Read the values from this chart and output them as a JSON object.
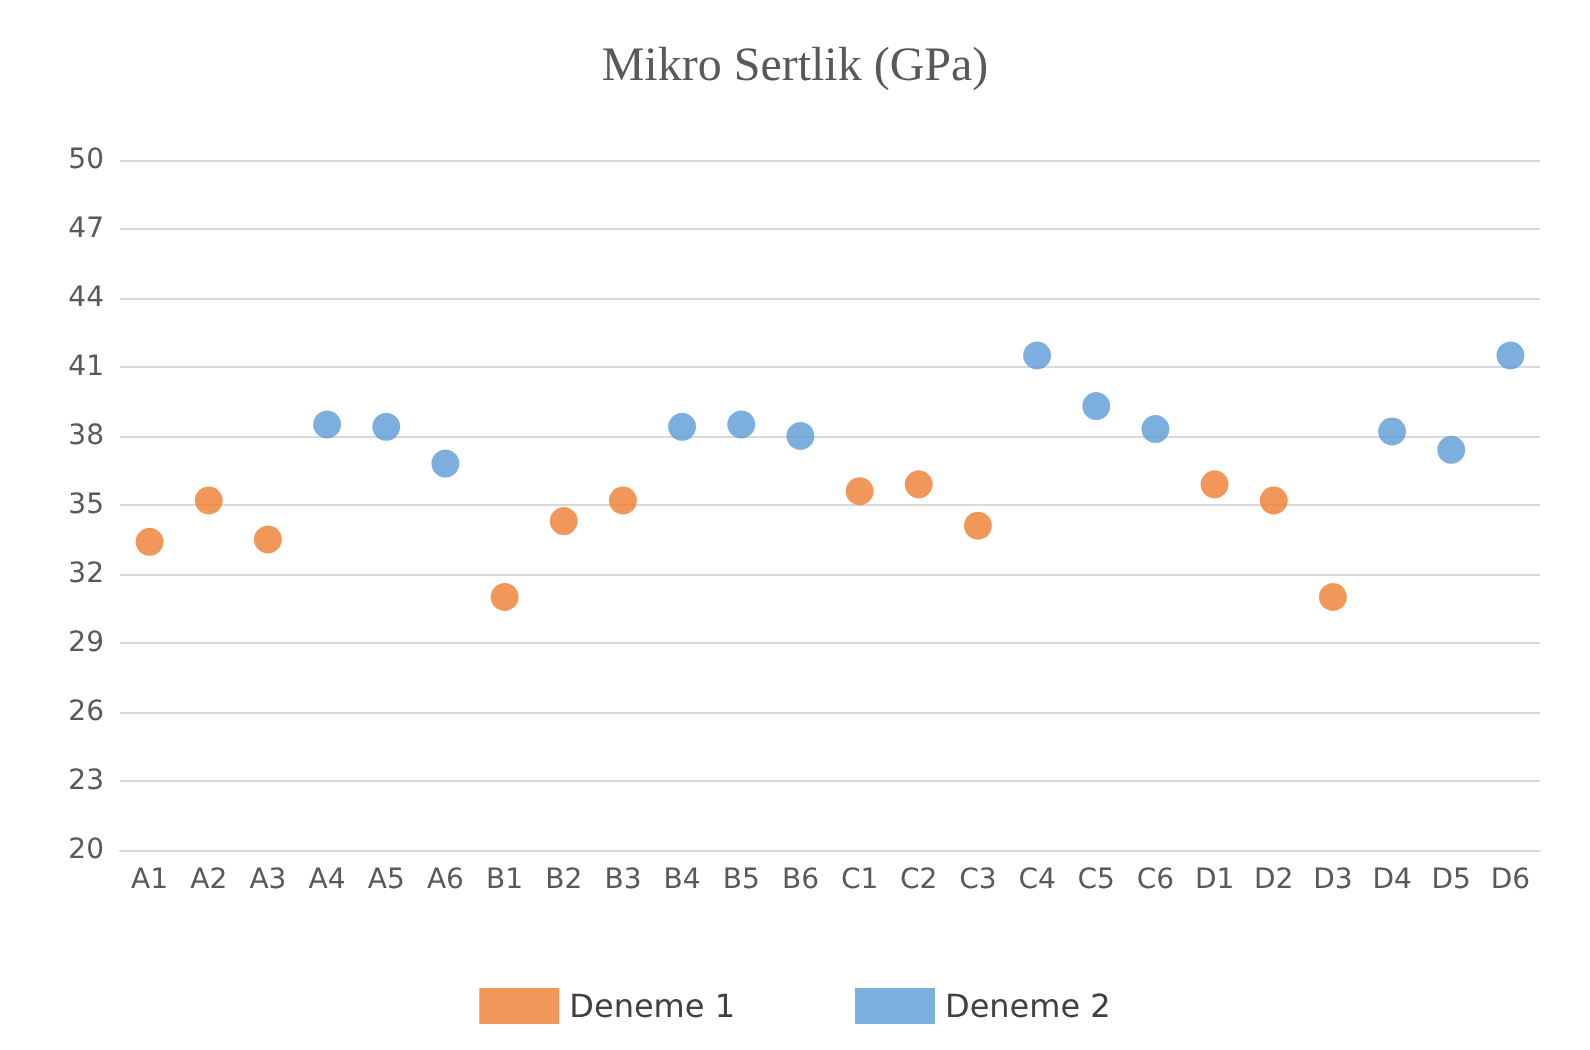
{
  "chart_data": {
    "type": "scatter",
    "title": "Mikro Sertlik (GPa)",
    "categories": [
      "A1",
      "A2",
      "A3",
      "A4",
      "A5",
      "A6",
      "B1",
      "B2",
      "B3",
      "B4",
      "B5",
      "B6",
      "C1",
      "C2",
      "C3",
      "C4",
      "C5",
      "C6",
      "D1",
      "D2",
      "D3",
      "D4",
      "D5",
      "D6"
    ],
    "series": [
      {
        "name": "Deneme 1",
        "color": "#ed7d31",
        "values": [
          33.4,
          35.2,
          33.5,
          null,
          null,
          null,
          31.0,
          34.3,
          35.2,
          null,
          null,
          null,
          35.6,
          35.9,
          34.1,
          null,
          null,
          null,
          35.9,
          35.2,
          31.0,
          null,
          null,
          null
        ]
      },
      {
        "name": "Deneme 2",
        "color": "#5b9bd5",
        "values": [
          null,
          null,
          null,
          38.5,
          38.4,
          36.8,
          null,
          null,
          null,
          38.4,
          38.5,
          38.0,
          null,
          null,
          null,
          41.5,
          39.3,
          38.3,
          null,
          null,
          null,
          38.2,
          37.4,
          41.5
        ]
      }
    ],
    "ylim": [
      20,
      50
    ],
    "yticks": [
      20,
      23,
      26,
      29,
      32,
      35,
      38,
      41,
      44,
      47,
      50
    ],
    "grid": "y",
    "legend": "bottom",
    "marker": "circle"
  }
}
